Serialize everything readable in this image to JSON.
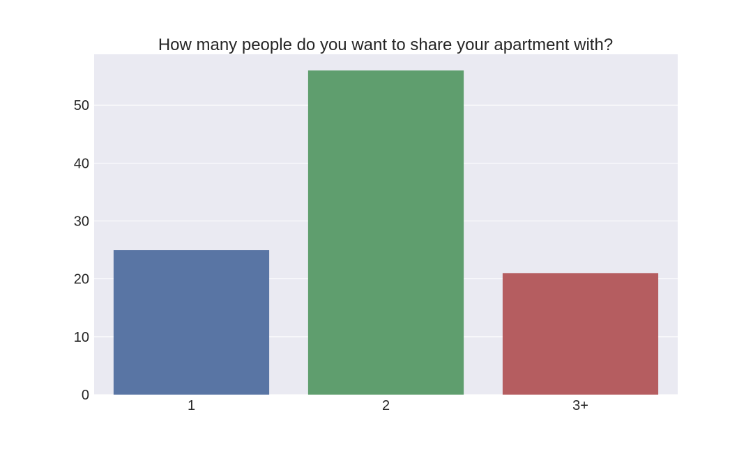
{
  "chart_data": {
    "type": "bar",
    "title": "How many people do you want to share your apartment with?",
    "xlabel": "",
    "ylabel": "",
    "categories": [
      "1",
      "2",
      "3+"
    ],
    "values": [
      25,
      56,
      21
    ],
    "colors": [
      "#5975a4",
      "#5f9e6e",
      "#b55d60"
    ],
    "ylim": [
      0,
      58.8
    ],
    "yticks": [
      0,
      10,
      20,
      30,
      40,
      50
    ],
    "grid": true,
    "legend": "none",
    "plot_background": "#eaeaf2",
    "gridline_color": "#ffffff",
    "text_color": "#262626"
  }
}
